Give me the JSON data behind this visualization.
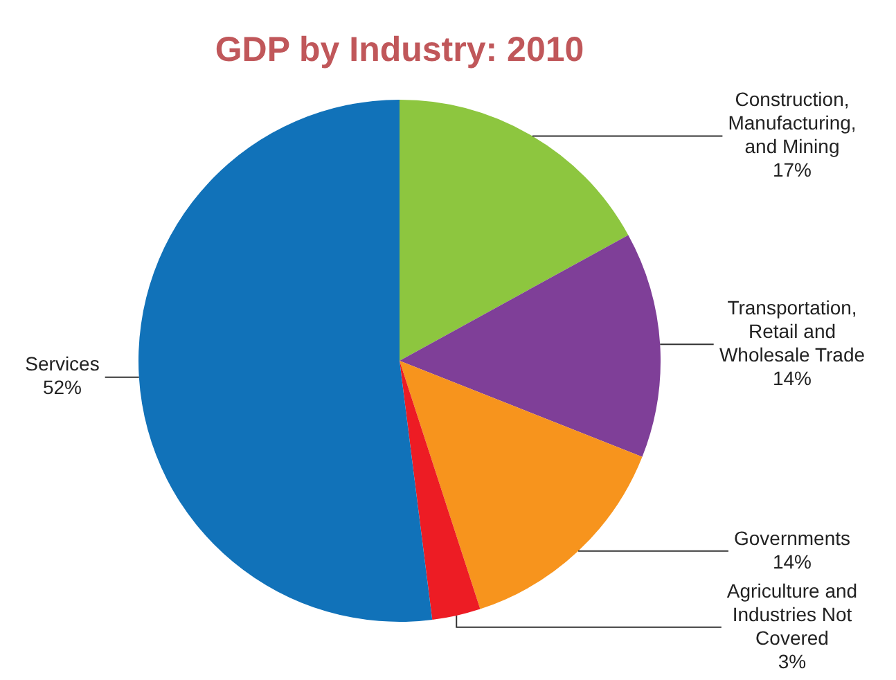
{
  "chart_data": {
    "type": "pie",
    "title": "GDP by Industry: 2010",
    "categories": [
      "Construction, Manufacturing, and Mining",
      "Transportation, Retail and Wholesale Trade",
      "Governments",
      "Agriculture and Industries Not Covered",
      "Services"
    ],
    "values": [
      17,
      14,
      14,
      3,
      52
    ],
    "value_labels": [
      "17%",
      "14%",
      "14%",
      "3%",
      "52%"
    ],
    "colors": [
      "#8dc63f",
      "#7f3f98",
      "#f7941d",
      "#ed1c24",
      "#1172b9"
    ],
    "legend": false
  }
}
